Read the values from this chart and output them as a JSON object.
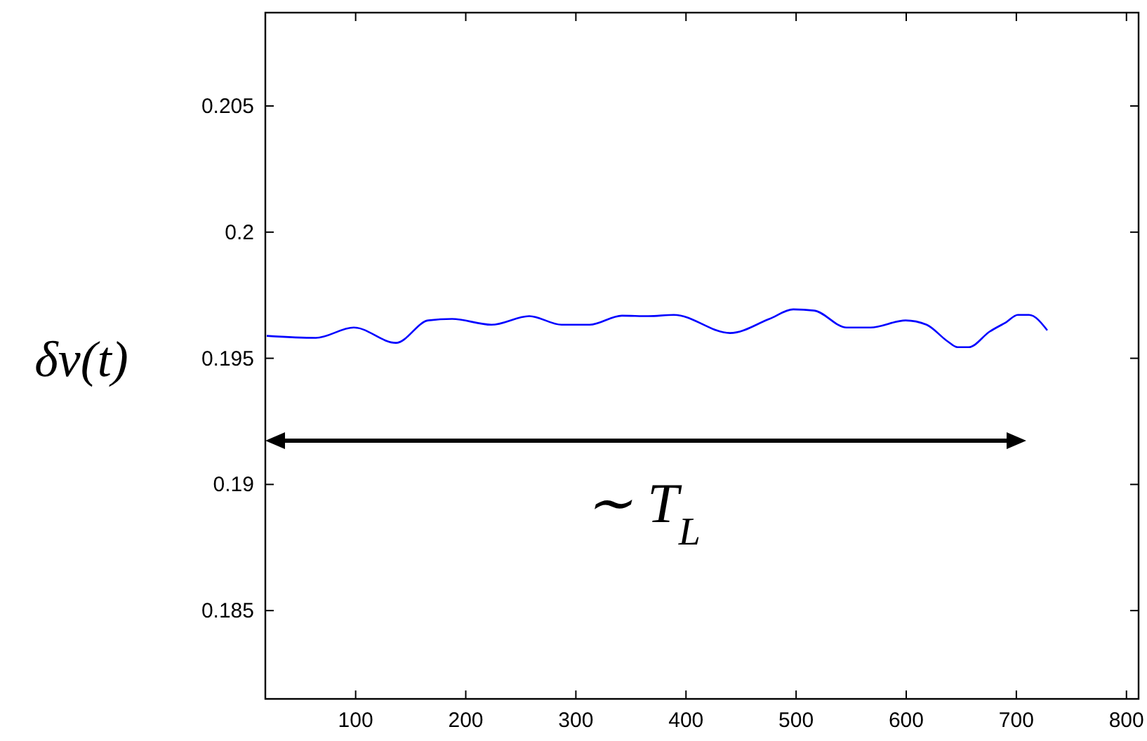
{
  "chart_data": {
    "type": "line",
    "ylabel": "δν(t)",
    "annotations": [
      "∼ T$_{L}$"
    ],
    "x": [
      19.3,
      63.9,
      98.3,
      136.6,
      165.9,
      187.6,
      223.3,
      257.7,
      287,
      312.5,
      341.8,
      366,
      389,
      440,
      475.7,
      497.4,
      516.5,
      545.8,
      567.5,
      599.4,
      618.5,
      637.6,
      646.5,
      656.7,
      675.8,
      691.1,
      701.3,
      711.5,
      728.1
    ],
    "series": [
      {
        "color": "#0000ff",
        "values": [
          0.19589,
          0.19581,
          0.19622,
          0.19561,
          0.1965,
          0.19656,
          0.19633,
          0.19667,
          0.19633,
          0.19633,
          0.19669,
          0.19667,
          0.19672,
          0.196,
          0.19656,
          0.19694,
          0.19689,
          0.19622,
          0.19622,
          0.1965,
          0.19633,
          0.19567,
          0.19544,
          0.19544,
          0.19606,
          0.19644,
          0.19672,
          0.19672,
          0.19611
        ]
      }
    ],
    "xlim": [
      18,
      811
    ],
    "xticks": [
      100,
      200,
      300,
      400,
      500,
      600,
      700,
      800
    ],
    "ylim": [
      0.1815,
      0.2087
    ],
    "yticks": [
      0.185,
      0.19,
      0.195,
      0.2,
      0.205
    ],
    "grid": false,
    "marker": "none",
    "line_style": "solid"
  }
}
